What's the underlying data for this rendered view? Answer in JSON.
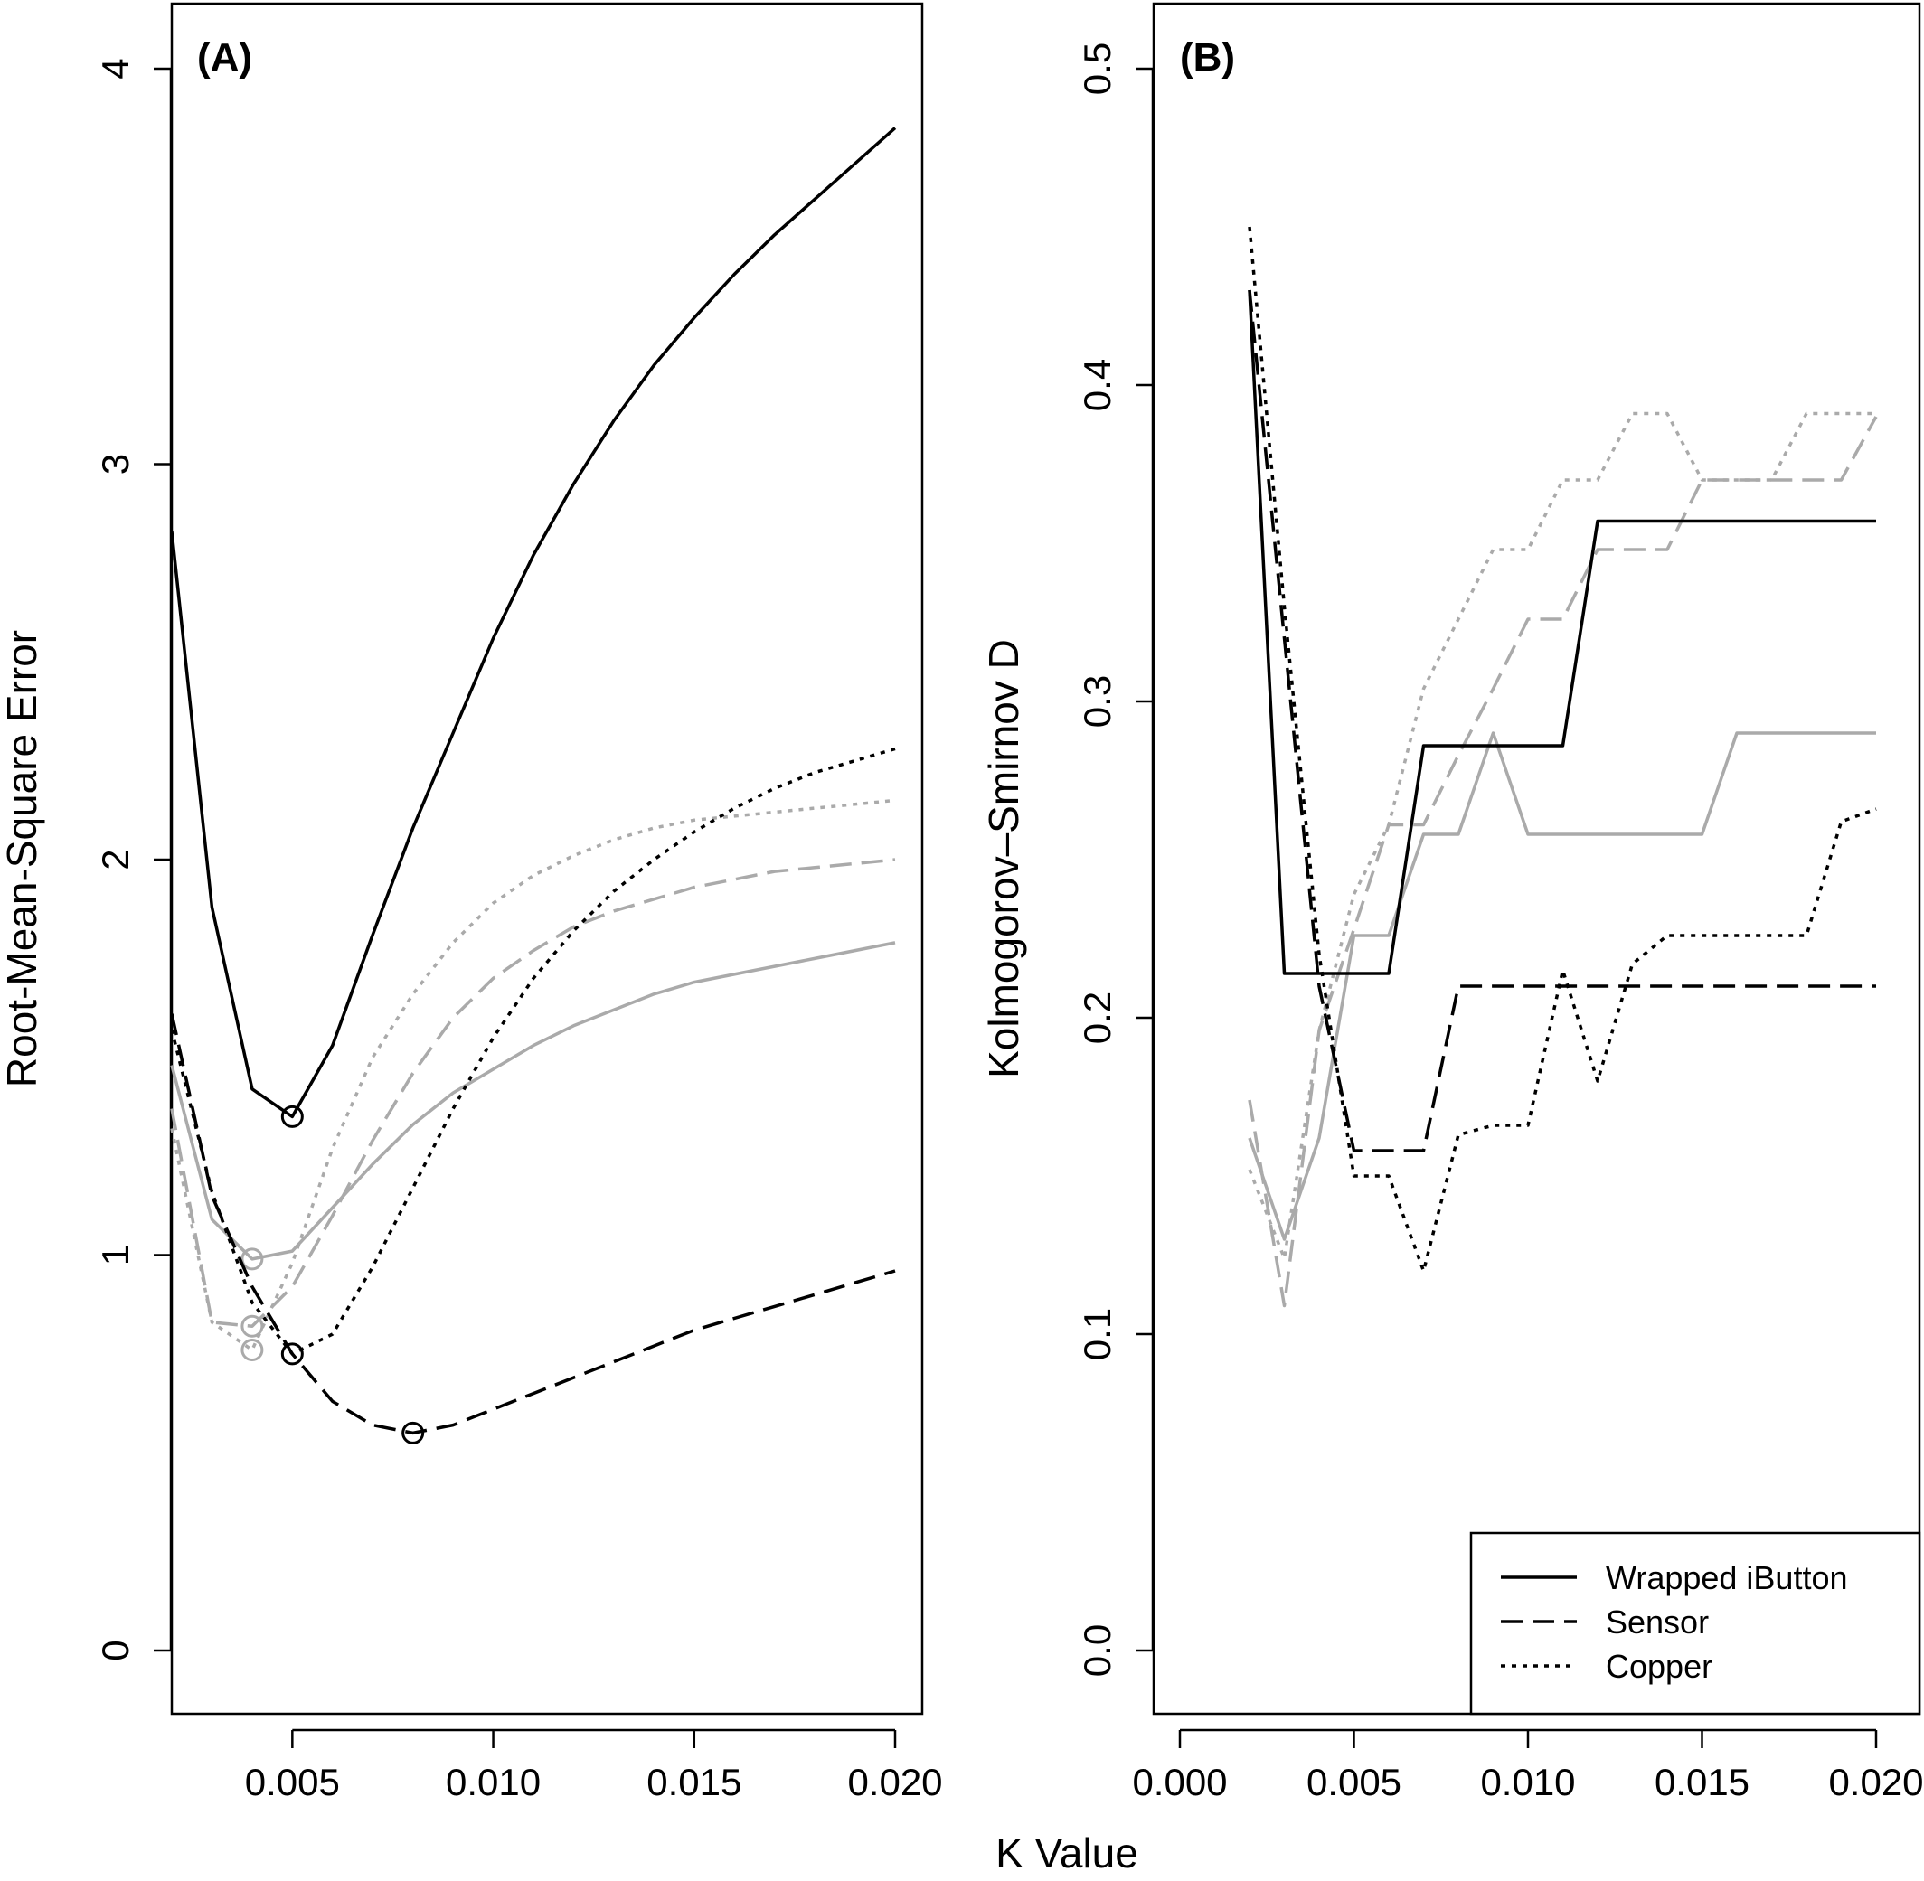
{
  "figure": {
    "xlabel": "K Value"
  },
  "colors": {
    "dark": "#000000",
    "light": "#aaaaaa",
    "background": "#ffffff"
  },
  "legend": {
    "entries": [
      {
        "label": "Wrapped iButton",
        "style": "solid"
      },
      {
        "label": "Sensor",
        "style": "dashed"
      },
      {
        "label": "Copper",
        "style": "dotted"
      }
    ],
    "position": "bottom-right of panel B"
  },
  "chart_data": [
    {
      "type": "line",
      "panel": "(A)",
      "xlabel": "K Value",
      "ylabel": "Root-Mean-Square Error",
      "xlim": [
        0.002,
        0.02
      ],
      "ylim": [
        0,
        4
      ],
      "xticks": [
        "0.005",
        "0.010",
        "0.015",
        "0.020"
      ],
      "yticks": [
        "0",
        "1",
        "2",
        "3",
        "4"
      ],
      "x": [
        0.002,
        0.003,
        0.004,
        0.005,
        0.006,
        0.007,
        0.008,
        0.009,
        0.01,
        0.011,
        0.012,
        0.013,
        0.014,
        0.015,
        0.016,
        0.017,
        0.018,
        0.019,
        0.02
      ],
      "series": [
        {
          "name": "Wrapped iButton",
          "style": "solid",
          "color": "dark",
          "values": [
            2.83,
            1.88,
            1.42,
            1.35,
            1.53,
            1.81,
            2.08,
            2.32,
            2.56,
            2.77,
            2.95,
            3.11,
            3.25,
            3.37,
            3.48,
            3.58,
            3.67,
            3.76,
            3.85
          ],
          "min": [
            0.005,
            1.35
          ]
        },
        {
          "name": "Sensor",
          "style": "dashed",
          "color": "dark",
          "values": [
            1.61,
            1.15,
            0.92,
            0.75,
            0.63,
            0.57,
            0.55,
            0.57,
            0.61,
            0.65,
            0.69,
            0.73,
            0.77,
            0.81,
            0.84,
            0.87,
            0.9,
            0.93,
            0.96
          ],
          "min": [
            0.008,
            0.55
          ]
        },
        {
          "name": "Copper",
          "style": "dotted",
          "color": "dark",
          "values": [
            1.57,
            1.16,
            0.88,
            0.75,
            0.8,
            0.97,
            1.17,
            1.37,
            1.55,
            1.7,
            1.82,
            1.92,
            2.0,
            2.07,
            2.13,
            2.18,
            2.22,
            2.25,
            2.28
          ],
          "min": [
            0.005,
            0.75
          ]
        },
        {
          "name": "",
          "style": "solid",
          "color": "light",
          "values": [
            1.48,
            1.09,
            0.99,
            1.01,
            1.12,
            1.23,
            1.33,
            1.41,
            1.47,
            1.53,
            1.58,
            1.62,
            1.66,
            1.69,
            1.71,
            1.73,
            1.75,
            1.77,
            1.79
          ],
          "min": [
            0.004,
            0.99
          ]
        },
        {
          "name": "",
          "style": "dashed",
          "color": "light",
          "values": [
            1.37,
            0.83,
            0.82,
            0.92,
            1.1,
            1.29,
            1.46,
            1.6,
            1.7,
            1.77,
            1.83,
            1.87,
            1.9,
            1.93,
            1.95,
            1.97,
            1.98,
            1.99,
            2.0
          ],
          "min": [
            0.004,
            0.82
          ]
        },
        {
          "name": "",
          "style": "dotted",
          "color": "light",
          "values": [
            1.32,
            0.83,
            0.76,
            0.98,
            1.27,
            1.5,
            1.66,
            1.79,
            1.89,
            1.96,
            2.01,
            2.05,
            2.08,
            2.1,
            2.11,
            2.12,
            2.13,
            2.14,
            2.15
          ],
          "min": [
            0.004,
            0.76
          ]
        }
      ]
    },
    {
      "type": "line",
      "panel": "(B)",
      "xlabel": "K Value",
      "ylabel": "Kolmogorov–Smirnov D",
      "xlim": [
        0.0,
        0.02
      ],
      "ylim": [
        0.0,
        0.5
      ],
      "xticks": [
        "0.000",
        "0.005",
        "0.010",
        "0.015",
        "0.020"
      ],
      "yticks": [
        "0.0",
        "0.1",
        "0.2",
        "0.3",
        "0.4",
        "0.5"
      ],
      "series": [
        {
          "name": "Wrapped iButton",
          "style": "solid",
          "color": "dark",
          "points": [
            [
              0.002,
              0.43
            ],
            [
              0.003,
              0.214
            ],
            [
              0.004,
              0.214
            ],
            [
              0.005,
              0.214
            ],
            [
              0.006,
              0.214
            ],
            [
              0.007,
              0.286
            ],
            [
              0.008,
              0.286
            ],
            [
              0.009,
              0.286
            ],
            [
              0.01,
              0.286
            ],
            [
              0.011,
              0.286
            ],
            [
              0.012,
              0.357
            ],
            [
              0.013,
              0.357
            ],
            [
              0.014,
              0.357
            ],
            [
              0.015,
              0.357
            ],
            [
              0.016,
              0.357
            ],
            [
              0.017,
              0.357
            ],
            [
              0.018,
              0.357
            ],
            [
              0.019,
              0.357
            ],
            [
              0.02,
              0.357
            ]
          ]
        },
        {
          "name": "Sensor",
          "style": "dashed",
          "color": "dark",
          "points": [
            [
              0.002,
              0.43
            ],
            [
              0.003,
              0.32
            ],
            [
              0.004,
              0.21
            ],
            [
              0.005,
              0.158
            ],
            [
              0.006,
              0.158
            ],
            [
              0.007,
              0.158
            ],
            [
              0.008,
              0.21
            ],
            [
              0.009,
              0.21
            ],
            [
              0.01,
              0.21
            ],
            [
              0.011,
              0.21
            ],
            [
              0.012,
              0.21
            ],
            [
              0.013,
              0.21
            ],
            [
              0.014,
              0.21
            ],
            [
              0.015,
              0.21
            ],
            [
              0.016,
              0.21
            ],
            [
              0.017,
              0.21
            ],
            [
              0.018,
              0.21
            ],
            [
              0.019,
              0.21
            ],
            [
              0.02,
              0.21
            ]
          ]
        },
        {
          "name": "Copper",
          "style": "dotted",
          "color": "dark",
          "points": [
            [
              0.002,
              0.45
            ],
            [
              0.003,
              0.33
            ],
            [
              0.004,
              0.22
            ],
            [
              0.005,
              0.15
            ],
            [
              0.006,
              0.15
            ],
            [
              0.007,
              0.12
            ],
            [
              0.008,
              0.163
            ],
            [
              0.009,
              0.166
            ],
            [
              0.01,
              0.166
            ],
            [
              0.011,
              0.215
            ],
            [
              0.012,
              0.18
            ],
            [
              0.013,
              0.217
            ],
            [
              0.014,
              0.226
            ],
            [
              0.015,
              0.226
            ],
            [
              0.016,
              0.226
            ],
            [
              0.017,
              0.226
            ],
            [
              0.018,
              0.226
            ],
            [
              0.019,
              0.262
            ],
            [
              0.02,
              0.266
            ]
          ]
        },
        {
          "name": "",
          "style": "solid",
          "color": "light",
          "points": [
            [
              0.002,
              0.162
            ],
            [
              0.003,
              0.13
            ],
            [
              0.004,
              0.162
            ],
            [
              0.005,
              0.226
            ],
            [
              0.006,
              0.226
            ],
            [
              0.007,
              0.258
            ],
            [
              0.008,
              0.258
            ],
            [
              0.009,
              0.29
            ],
            [
              0.01,
              0.258
            ],
            [
              0.011,
              0.258
            ],
            [
              0.012,
              0.258
            ],
            [
              0.013,
              0.258
            ],
            [
              0.014,
              0.258
            ],
            [
              0.015,
              0.258
            ],
            [
              0.016,
              0.29
            ],
            [
              0.017,
              0.29
            ],
            [
              0.018,
              0.29
            ],
            [
              0.019,
              0.29
            ],
            [
              0.02,
              0.29
            ]
          ]
        },
        {
          "name": "",
          "style": "dashed",
          "color": "light",
          "points": [
            [
              0.002,
              0.174
            ],
            [
              0.003,
              0.109
            ],
            [
              0.004,
              0.196
            ],
            [
              0.005,
              0.228
            ],
            [
              0.006,
              0.261
            ],
            [
              0.007,
              0.261
            ],
            [
              0.008,
              0.283
            ],
            [
              0.009,
              0.304
            ],
            [
              0.01,
              0.326
            ],
            [
              0.011,
              0.326
            ],
            [
              0.012,
              0.348
            ],
            [
              0.013,
              0.348
            ],
            [
              0.014,
              0.348
            ],
            [
              0.015,
              0.37
            ],
            [
              0.016,
              0.37
            ],
            [
              0.017,
              0.37
            ],
            [
              0.018,
              0.37
            ],
            [
              0.019,
              0.37
            ],
            [
              0.02,
              0.39
            ]
          ]
        },
        {
          "name": "",
          "style": "dotted",
          "color": "light",
          "points": [
            [
              0.002,
              0.152
            ],
            [
              0.003,
              0.124
            ],
            [
              0.004,
              0.196
            ],
            [
              0.005,
              0.239
            ],
            [
              0.006,
              0.261
            ],
            [
              0.007,
              0.304
            ],
            [
              0.008,
              0.326
            ],
            [
              0.009,
              0.348
            ],
            [
              0.01,
              0.348
            ],
            [
              0.011,
              0.37
            ],
            [
              0.012,
              0.37
            ],
            [
              0.013,
              0.391
            ],
            [
              0.014,
              0.391
            ],
            [
              0.015,
              0.37
            ],
            [
              0.016,
              0.37
            ],
            [
              0.017,
              0.37
            ],
            [
              0.018,
              0.391
            ],
            [
              0.019,
              0.391
            ],
            [
              0.02,
              0.391
            ]
          ]
        }
      ]
    }
  ]
}
